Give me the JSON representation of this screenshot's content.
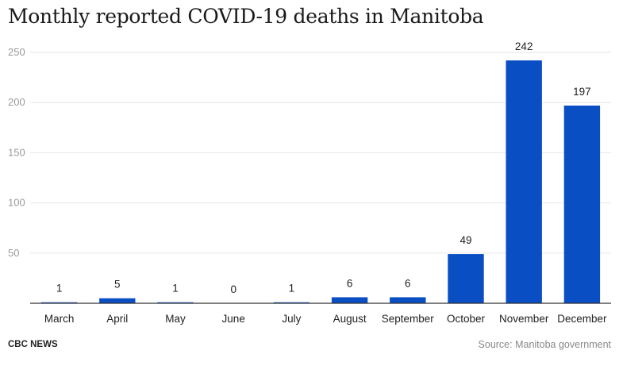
{
  "chart_data": {
    "type": "bar",
    "title": "Monthly reported COVID-19 deaths in Manitoba",
    "categories": [
      "March",
      "April",
      "May",
      "June",
      "July",
      "August",
      "September",
      "October",
      "November",
      "December"
    ],
    "values": [
      1,
      5,
      1,
      0,
      1,
      6,
      6,
      49,
      242,
      197
    ],
    "xlabel": "",
    "ylabel": "",
    "ylim": [
      0,
      250
    ],
    "yticks": [
      50,
      100,
      150,
      200,
      250
    ],
    "grid": true,
    "bar_color": "#0a4ec4"
  },
  "footer": {
    "brand": "CBC NEWS",
    "source": "Source: Manitoba government"
  }
}
